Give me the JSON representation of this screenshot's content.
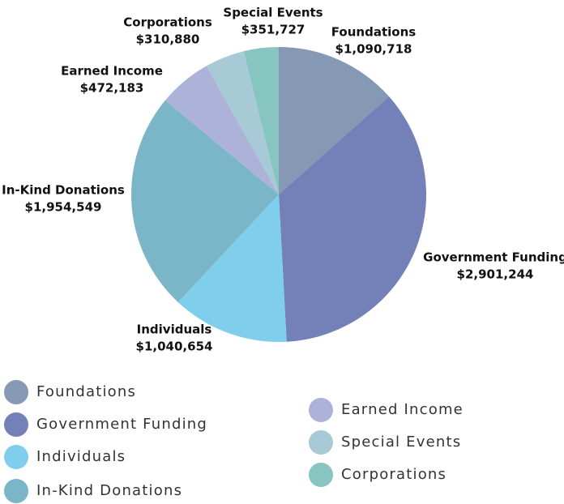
{
  "chart_data": {
    "type": "pie",
    "categories": [
      "Foundations",
      "Government Funding",
      "Individuals",
      "In-Kind Donations",
      "Earned Income",
      "Special Events",
      "Corporations"
    ],
    "values": [
      1090718,
      2901244,
      1040654,
      1954549,
      472183,
      351727,
      310880
    ],
    "value_labels": [
      "$1,090,718",
      "$2,901,244",
      "$1,040,654",
      "$1,954,549",
      "$472,183",
      "$351,727",
      "$310,880"
    ],
    "colors": [
      "#8599b5",
      "#7480b8",
      "#7fcfec",
      "#7ab5c8",
      "#adb3d8",
      "#a7cad6",
      "#86c5c0"
    ]
  }
}
